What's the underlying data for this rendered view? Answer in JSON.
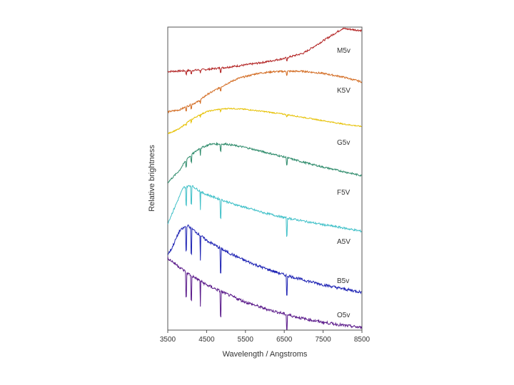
{
  "chart_data": {
    "type": "line",
    "title": "",
    "xlabel": "Wavelength / Angstroms",
    "ylabel": "Relative brightness",
    "xlim": [
      3500,
      8500
    ],
    "x_ticks": [
      3500,
      4500,
      5500,
      6500,
      7500,
      8500
    ],
    "x_tick_labels": [
      "3500",
      "4500",
      "5500",
      "6500",
      "7500",
      "8500"
    ],
    "grid": false,
    "legend": "series labels placed at right end of each curve",
    "series": [
      {
        "name": "M5v",
        "color": "#b22222",
        "points": [
          [
            3500,
            1.0
          ],
          [
            4000,
            1.2
          ],
          [
            4500,
            1.5
          ],
          [
            5000,
            2.0
          ],
          [
            5500,
            2.6
          ],
          [
            6000,
            3.3
          ],
          [
            6500,
            4.2
          ],
          [
            7000,
            5.5
          ],
          [
            7500,
            8.5
          ],
          [
            8000,
            11.5
          ],
          [
            8500,
            11.0
          ]
        ]
      },
      {
        "name": "K5V",
        "color": "#d2691e",
        "points": [
          [
            3500,
            0.5
          ],
          [
            3800,
            1.0
          ],
          [
            4000,
            1.8
          ],
          [
            4300,
            3.0
          ],
          [
            4500,
            4.5
          ],
          [
            4800,
            6.0
          ],
          [
            5000,
            7.0
          ],
          [
            5300,
            8.3
          ],
          [
            5600,
            9.0
          ],
          [
            5800,
            9.5
          ],
          [
            6200,
            9.9
          ],
          [
            6600,
            10.0
          ],
          [
            7000,
            10.0
          ],
          [
            7500,
            9.5
          ],
          [
            8000,
            8.7
          ],
          [
            8500,
            7.5
          ]
        ]
      },
      {
        "name": "G5v",
        "color": "#e6c000",
        "points": [
          [
            3500,
            1.0
          ],
          [
            3800,
            2.5
          ],
          [
            4000,
            4.5
          ],
          [
            4200,
            6.0
          ],
          [
            4500,
            7.8
          ],
          [
            4800,
            8.5
          ],
          [
            5100,
            8.8
          ],
          [
            5500,
            8.5
          ],
          [
            6000,
            7.8
          ],
          [
            6500,
            7.0
          ],
          [
            7000,
            6.0
          ],
          [
            7500,
            5.0
          ],
          [
            8000,
            4.0
          ],
          [
            8500,
            3.2
          ]
        ]
      },
      {
        "name": "F5V",
        "color": "#2e8b6b",
        "points": [
          [
            3500,
            1.5
          ],
          [
            3800,
            4.0
          ],
          [
            4000,
            6.5
          ],
          [
            4300,
            8.5
          ],
          [
            4600,
            9.5
          ],
          [
            5000,
            9.5
          ],
          [
            5500,
            8.8
          ],
          [
            6000,
            7.8
          ],
          [
            6500,
            6.8
          ],
          [
            7000,
            5.7
          ],
          [
            7500,
            4.7
          ],
          [
            8000,
            3.8
          ],
          [
            8500,
            2.9
          ]
        ]
      },
      {
        "name": "A5V",
        "color": "#40c0c8",
        "points": [
          [
            3500,
            3.0
          ],
          [
            3700,
            7.0
          ],
          [
            3900,
            11.0
          ],
          [
            4100,
            11.5
          ],
          [
            4400,
            9.8
          ],
          [
            4800,
            8.5
          ],
          [
            5200,
            7.3
          ],
          [
            5600,
            6.3
          ],
          [
            6000,
            5.3
          ],
          [
            6500,
            4.3
          ],
          [
            7000,
            3.5
          ],
          [
            7500,
            2.7
          ],
          [
            8000,
            2.0
          ],
          [
            8500,
            1.2
          ]
        ]
      },
      {
        "name": "B5v",
        "color": "#1f24b4",
        "points": [
          [
            3500,
            7.0
          ],
          [
            3600,
            8.0
          ],
          [
            3800,
            11.0
          ],
          [
            4000,
            12.0
          ],
          [
            4200,
            11.0
          ],
          [
            4500,
            9.4
          ],
          [
            5000,
            7.5
          ],
          [
            5500,
            5.9
          ],
          [
            6000,
            4.6
          ],
          [
            6500,
            3.5
          ],
          [
            7000,
            2.6
          ],
          [
            7500,
            1.8
          ],
          [
            8000,
            1.1
          ],
          [
            8500,
            0.5
          ]
        ]
      },
      {
        "name": "O5v",
        "color": "#5a1a8a",
        "points": [
          [
            3500,
            12.0
          ],
          [
            3700,
            11.0
          ],
          [
            4000,
            9.5
          ],
          [
            4500,
            7.5
          ],
          [
            5000,
            6.0
          ],
          [
            5500,
            4.6
          ],
          [
            6000,
            3.5
          ],
          [
            6500,
            2.6
          ],
          [
            7000,
            1.8
          ],
          [
            7500,
            1.2
          ],
          [
            8000,
            0.7
          ],
          [
            8500,
            0.3
          ]
        ]
      }
    ]
  }
}
